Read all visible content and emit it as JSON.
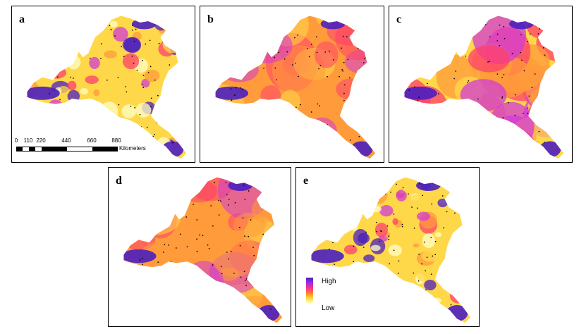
{
  "panels": [
    {
      "label": "a",
      "style": "fragmented",
      "accent": "#3e1fd0"
    },
    {
      "label": "b",
      "style": "smooth",
      "accent": "#ff3b6b"
    },
    {
      "label": "c",
      "style": "medium",
      "accent": "#ff5a3c"
    },
    {
      "label": "d",
      "style": "smooth",
      "accent": "#ff4f9a"
    },
    {
      "label": "e",
      "style": "fragmented",
      "accent": "#ffb020"
    }
  ],
  "scale_bar": {
    "ticks": [
      "0",
      "110",
      "220",
      "440",
      "660",
      "880"
    ],
    "unit": "Kilometers"
  },
  "legend": {
    "high": "High",
    "low": "Low"
  },
  "colors": {
    "high": "#4b1fbf",
    "mid_high": "#d23bd6",
    "mid": "#ff3f6c",
    "mid_low": "#ff9b3b",
    "low": "#ffd84a",
    "lowest": "#ffffc8",
    "sample_point": "#000000"
  }
}
